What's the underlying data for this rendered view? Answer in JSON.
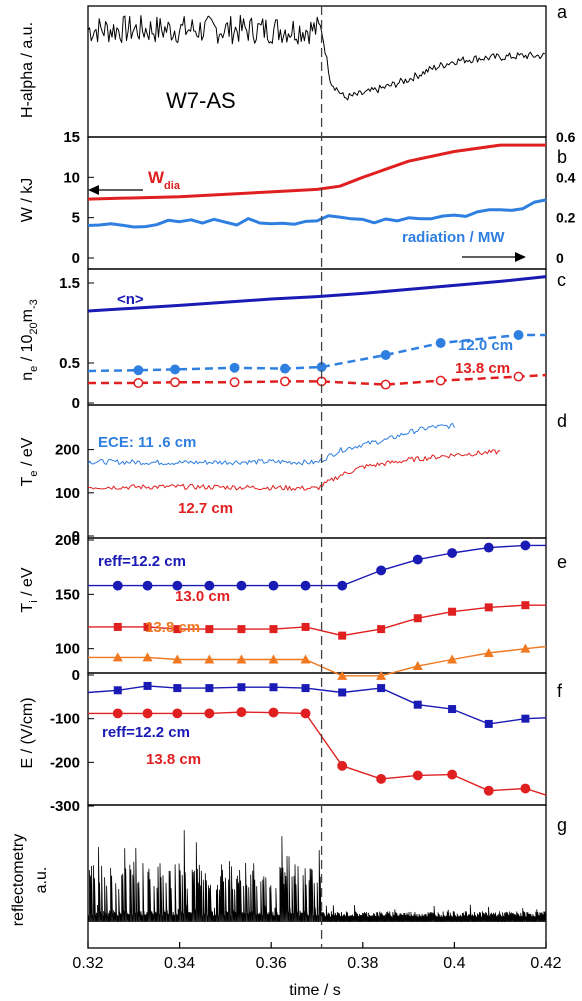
{
  "figure": {
    "machine_label": "W7-AS",
    "x_axis_label": "time / s",
    "x_range": [
      0.32,
      0.42
    ],
    "x_ticks": [
      "0.32",
      "0.34",
      "0.36",
      "0.38",
      "0.4",
      "0.42"
    ],
    "x_tick_values": [
      0.32,
      0.34,
      0.36,
      0.38,
      0.4,
      0.42
    ],
    "transition_time": 0.371
  },
  "panel_letters": [
    "a",
    "b",
    "c",
    "d",
    "e",
    "f",
    "g"
  ],
  "colors": {
    "blue_dark": "#1a1ab4",
    "blue_light": "#2f7fe0",
    "red": "#e02020",
    "orange": "#f07820",
    "black": "#000000"
  },
  "chart_data": [
    {
      "panel": "a",
      "type": "line",
      "ylabel": "H-alpha / a.u.",
      "series": [
        {
          "color": "#000000",
          "x": [
            0.32,
            0.33,
            0.34,
            0.35,
            0.36,
            0.371,
            0.373,
            0.376,
            0.38,
            0.385,
            0.39,
            0.395,
            0.4,
            0.405,
            0.41,
            0.415,
            0.42
          ],
          "y": [
            0.82,
            0.82,
            0.82,
            0.82,
            0.82,
            0.82,
            0.42,
            0.3,
            0.33,
            0.38,
            0.44,
            0.52,
            0.58,
            0.6,
            0.61,
            0.62,
            0.62
          ]
        }
      ]
    },
    {
      "panel": "b",
      "type": "line",
      "ylabel": "W / kJ",
      "ylim": [
        0,
        15
      ],
      "yticks": [
        "15",
        "10",
        "5",
        "0"
      ],
      "ylim_right": [
        0,
        0.6
      ],
      "yticks_right": [
        "0.6",
        "0.4",
        "0.2",
        "0"
      ],
      "series": [
        {
          "label": "W",
          "label_sub": "dia",
          "color": "#e02020",
          "x": [
            0.32,
            0.34,
            0.36,
            0.37,
            0.375,
            0.38,
            0.39,
            0.4,
            0.41,
            0.42
          ],
          "y": [
            7.3,
            7.6,
            8.2,
            8.5,
            8.9,
            10.0,
            12.0,
            13.2,
            14.0,
            14.0
          ]
        },
        {
          "label": "radiation / MW",
          "color": "#2f7fe0",
          "x": [
            0.32,
            0.33,
            0.34,
            0.35,
            0.36,
            0.37,
            0.38,
            0.39,
            0.4,
            0.41,
            0.42
          ],
          "y": [
            0.16,
            0.17,
            0.17,
            0.18,
            0.18,
            0.19,
            0.19,
            0.2,
            0.21,
            0.24,
            0.29
          ]
        }
      ]
    },
    {
      "panel": "c",
      "type": "line",
      "ylabel": "n_e / 10^20 m^-3",
      "ylim": [
        0,
        1.6
      ],
      "yticks": [
        "1.5",
        "0.5",
        "0"
      ],
      "series": [
        {
          "label": "<n>",
          "color": "#1a1ab4",
          "x": [
            0.32,
            0.34,
            0.36,
            0.37,
            0.38,
            0.39,
            0.4,
            0.41,
            0.42
          ],
          "y": [
            1.15,
            1.22,
            1.3,
            1.33,
            1.37,
            1.42,
            1.47,
            1.52,
            1.58
          ]
        },
        {
          "label": "12.0 cm",
          "color": "#2f7fe0",
          "x": [
            0.32,
            0.331,
            0.339,
            0.352,
            0.363,
            0.371,
            0.385,
            0.397,
            0.414,
            0.42
          ],
          "y": [
            0.4,
            0.41,
            0.42,
            0.44,
            0.43,
            0.45,
            0.6,
            0.75,
            0.85,
            0.85
          ]
        },
        {
          "label": "13.8 cm",
          "color": "#e02020",
          "x": [
            0.32,
            0.331,
            0.339,
            0.352,
            0.363,
            0.371,
            0.385,
            0.397,
            0.414,
            0.42
          ],
          "y": [
            0.25,
            0.25,
            0.26,
            0.26,
            0.27,
            0.27,
            0.23,
            0.28,
            0.33,
            0.35
          ]
        }
      ]
    },
    {
      "panel": "d",
      "type": "line",
      "ylabel": "T_e / eV",
      "ylim": [
        0,
        280
      ],
      "yticks": [
        "200",
        "100",
        "0"
      ],
      "series": [
        {
          "label": "ECE: 11 .6 cm",
          "color": "#2f7fe0",
          "x": [
            0.32,
            0.34,
            0.36,
            0.37,
            0.375,
            0.38,
            0.385,
            0.39,
            0.395,
            0.4
          ],
          "y": [
            172,
            170,
            172,
            170,
            198,
            212,
            222,
            240,
            252,
            255
          ]
        },
        {
          "label": "12.7 cm",
          "color": "#e02020",
          "x": [
            0.32,
            0.34,
            0.36,
            0.37,
            0.375,
            0.38,
            0.39,
            0.4,
            0.41
          ],
          "y": [
            113,
            114,
            112,
            110,
            140,
            160,
            176,
            188,
            195
          ]
        }
      ]
    },
    {
      "panel": "e",
      "type": "line",
      "ylabel": "T_i / eV",
      "ylim": [
        70,
        200
      ],
      "yticks": [
        "200",
        "150",
        "100"
      ],
      "series": [
        {
          "label": "reff=12.2 cm",
          "color": "#1a1ab4",
          "marker": "circle",
          "x": [
            0.32,
            0.3265,
            0.333,
            0.3395,
            0.3465,
            0.3535,
            0.3605,
            0.3675,
            0.3755,
            0.384,
            0.392,
            0.3995,
            0.4075,
            0.4155,
            0.42
          ],
          "y": [
            158,
            158,
            158,
            158,
            158,
            158,
            158,
            158,
            158,
            172,
            182,
            188,
            193,
            195,
            195
          ]
        },
        {
          "label": "13.0 cm",
          "color": "#e02020",
          "marker": "square",
          "x": [
            0.32,
            0.3265,
            0.333,
            0.3395,
            0.3465,
            0.3535,
            0.3605,
            0.3675,
            0.3755,
            0.384,
            0.392,
            0.3995,
            0.4075,
            0.4155,
            0.42
          ],
          "y": [
            120,
            120,
            120,
            118,
            118,
            118,
            118,
            120,
            112,
            118,
            128,
            134,
            138,
            140,
            140
          ]
        },
        {
          "label": "13.8 cm",
          "color": "#f07820",
          "marker": "triangle",
          "x": [
            0.32,
            0.3265,
            0.333,
            0.3395,
            0.3465,
            0.3535,
            0.3605,
            0.3675,
            0.3755,
            0.384,
            0.392,
            0.3995,
            0.4075,
            0.4155,
            0.42
          ],
          "y": [
            92,
            92,
            92,
            90,
            90,
            90,
            90,
            90,
            75,
            75,
            84,
            90,
            96,
            100,
            102
          ]
        }
      ]
    },
    {
      "panel": "f",
      "type": "line",
      "ylabel": "E / (V/cm)",
      "ylim": [
        -300,
        0
      ],
      "yticks": [
        "0",
        "-100",
        "-200",
        "-300"
      ],
      "series": [
        {
          "label": "reff=12.2 cm",
          "color": "#1a1ab4",
          "marker": "square",
          "x": [
            0.32,
            0.3265,
            0.333,
            0.3395,
            0.3465,
            0.3535,
            0.3605,
            0.3675,
            0.3755,
            0.384,
            0.392,
            0.3995,
            0.4075,
            0.4155,
            0.42
          ],
          "y": [
            -40,
            -35,
            -25,
            -30,
            -30,
            -28,
            -28,
            -30,
            -40,
            -30,
            -68,
            -78,
            -112,
            -100,
            -98
          ]
        },
        {
          "label": "13.8 cm",
          "color": "#e02020",
          "marker": "circle",
          "x": [
            0.32,
            0.3265,
            0.333,
            0.3395,
            0.3465,
            0.3535,
            0.3605,
            0.3675,
            0.3755,
            0.384,
            0.392,
            0.3995,
            0.4075,
            0.4155,
            0.42
          ],
          "y": [
            -88,
            -88,
            -88,
            -88,
            -88,
            -85,
            -86,
            -88,
            -208,
            -238,
            -230,
            -228,
            -265,
            -260,
            -275
          ]
        }
      ]
    },
    {
      "panel": "g",
      "type": "line",
      "ylabel": "reflectometry a.u.",
      "series": [
        {
          "color": "#000000",
          "x": [
            0.32,
            0.33,
            0.34,
            0.35,
            0.36,
            0.371,
            0.372,
            0.38,
            0.39,
            0.4,
            0.41,
            0.42
          ],
          "y": [
            0.45,
            0.45,
            0.45,
            0.45,
            0.45,
            0.45,
            0.05,
            0.05,
            0.05,
            0.05,
            0.05,
            0.05
          ]
        }
      ]
    }
  ]
}
